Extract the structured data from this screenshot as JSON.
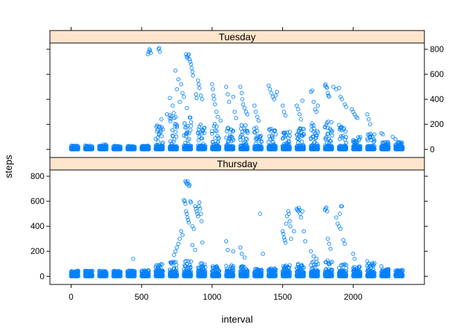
{
  "chart_data": {
    "type": "scatter",
    "xlabel": "interval",
    "ylabel": "steps",
    "xlim": [
      -150,
      2505
    ],
    "ylim": [
      -65,
      850
    ],
    "x_ticks": [
      0,
      500,
      1000,
      1500,
      2000
    ],
    "y_ticks": [
      0,
      200,
      400,
      600,
      800
    ],
    "grid": false,
    "marker_color": "#0080ff",
    "strip_color": "#ffe5cc",
    "panels": [
      {
        "name": "Tuesday",
        "base_max": 30,
        "clusters": [
          {
            "x": 0,
            "max": 20
          },
          {
            "x": 100,
            "max": 10
          },
          {
            "x": 200,
            "max": 40
          },
          {
            "x": 300,
            "max": 10
          },
          {
            "x": 400,
            "max": 10
          },
          {
            "x": 500,
            "max": 20
          },
          {
            "x": 600,
            "max": 200
          },
          {
            "x": 700,
            "max": 320
          },
          {
            "x": 800,
            "max": 260
          },
          {
            "x": 900,
            "max": 200
          },
          {
            "x": 1000,
            "max": 220
          },
          {
            "x": 1100,
            "max": 180
          },
          {
            "x": 1200,
            "max": 200
          },
          {
            "x": 1300,
            "max": 180
          },
          {
            "x": 1400,
            "max": 180
          },
          {
            "x": 1500,
            "max": 150
          },
          {
            "x": 1600,
            "max": 170
          },
          {
            "x": 1700,
            "max": 210
          },
          {
            "x": 1800,
            "max": 230
          },
          {
            "x": 1900,
            "max": 200
          },
          {
            "x": 2000,
            "max": 110
          },
          {
            "x": 2100,
            "max": 140
          },
          {
            "x": 2200,
            "max": 60
          },
          {
            "x": 2300,
            "max": 60
          }
        ],
        "points": [
          [
            545,
            760
          ],
          [
            550,
            780
          ],
          [
            555,
            800
          ],
          [
            560,
            790
          ],
          [
            565,
            770
          ],
          [
            620,
            800
          ],
          [
            625,
            810
          ],
          [
            630,
            780
          ],
          [
            815,
            760
          ],
          [
            820,
            740
          ],
          [
            825,
            730
          ],
          [
            830,
            750
          ],
          [
            835,
            760
          ],
          [
            840,
            720
          ],
          [
            845,
            700
          ],
          [
            850,
            680
          ],
          [
            855,
            650
          ],
          [
            860,
            620
          ],
          [
            865,
            590
          ],
          [
            900,
            550
          ],
          [
            905,
            520
          ],
          [
            910,
            490
          ],
          [
            885,
            440
          ],
          [
            890,
            410
          ],
          [
            920,
            430
          ],
          [
            930,
            400
          ],
          [
            740,
            630
          ],
          [
            760,
            560
          ],
          [
            790,
            450
          ],
          [
            800,
            420
          ],
          [
            770,
            380
          ],
          [
            820,
            330
          ],
          [
            720,
            350
          ],
          [
            680,
            280
          ],
          [
            640,
            240
          ],
          [
            700,
            410
          ],
          [
            750,
            480
          ],
          [
            780,
            520
          ],
          [
            1000,
            520
          ],
          [
            1005,
            480
          ],
          [
            1010,
            430
          ],
          [
            1015,
            400
          ],
          [
            1020,
            360
          ],
          [
            1030,
            300
          ],
          [
            1040,
            260
          ],
          [
            1060,
            230
          ],
          [
            1100,
            500
          ],
          [
            1110,
            440
          ],
          [
            1120,
            380
          ],
          [
            1150,
            420
          ],
          [
            1160,
            300
          ],
          [
            1170,
            250
          ],
          [
            1200,
            500
          ],
          [
            1210,
            450
          ],
          [
            1215,
            400
          ],
          [
            1220,
            360
          ],
          [
            1230,
            330
          ],
          [
            1240,
            300
          ],
          [
            1250,
            280
          ],
          [
            1300,
            350
          ],
          [
            1310,
            300
          ],
          [
            1320,
            260
          ],
          [
            1330,
            230
          ],
          [
            1400,
            510
          ],
          [
            1410,
            480
          ],
          [
            1420,
            450
          ],
          [
            1430,
            420
          ],
          [
            1440,
            400
          ],
          [
            1450,
            430
          ],
          [
            1460,
            460
          ],
          [
            1500,
            350
          ],
          [
            1510,
            300
          ],
          [
            1520,
            270
          ],
          [
            1600,
            350
          ],
          [
            1610,
            320
          ],
          [
            1620,
            280
          ],
          [
            1630,
            240
          ],
          [
            1640,
            390
          ],
          [
            1700,
            460
          ],
          [
            1710,
            470
          ],
          [
            1720,
            380
          ],
          [
            1730,
            320
          ],
          [
            1740,
            300
          ],
          [
            1750,
            350
          ],
          [
            1800,
            510
          ],
          [
            1805,
            520
          ],
          [
            1810,
            500
          ],
          [
            1815,
            490
          ],
          [
            1820,
            450
          ],
          [
            1825,
            430
          ],
          [
            1830,
            420
          ],
          [
            1860,
            500
          ],
          [
            1880,
            480
          ],
          [
            1900,
            490
          ],
          [
            1910,
            420
          ],
          [
            1920,
            400
          ],
          [
            1940,
            360
          ],
          [
            1950,
            340
          ],
          [
            1990,
            320
          ],
          [
            2000,
            300
          ],
          [
            2010,
            280
          ],
          [
            2020,
            260
          ],
          [
            2030,
            250
          ],
          [
            2100,
            280
          ],
          [
            2110,
            240
          ],
          [
            2120,
            200
          ],
          [
            2200,
            130
          ],
          [
            2210,
            120
          ],
          [
            2280,
            100
          ],
          [
            2300,
            80
          ]
        ]
      },
      {
        "name": "Thursday",
        "base_max": 45,
        "clusters": [
          {
            "x": 0,
            "max": 45
          },
          {
            "x": 100,
            "max": 45
          },
          {
            "x": 200,
            "max": 45
          },
          {
            "x": 300,
            "max": 45
          },
          {
            "x": 400,
            "max": 50
          },
          {
            "x": 500,
            "max": 50
          },
          {
            "x": 600,
            "max": 100
          },
          {
            "x": 700,
            "max": 120
          },
          {
            "x": 800,
            "max": 130
          },
          {
            "x": 900,
            "max": 110
          },
          {
            "x": 1000,
            "max": 90
          },
          {
            "x": 1100,
            "max": 90
          },
          {
            "x": 1200,
            "max": 80
          },
          {
            "x": 1300,
            "max": 60
          },
          {
            "x": 1400,
            "max": 70
          },
          {
            "x": 1500,
            "max": 90
          },
          {
            "x": 1600,
            "max": 100
          },
          {
            "x": 1700,
            "max": 120
          },
          {
            "x": 1800,
            "max": 130
          },
          {
            "x": 1900,
            "max": 100
          },
          {
            "x": 2000,
            "max": 80
          },
          {
            "x": 2100,
            "max": 110
          },
          {
            "x": 2200,
            "max": 60
          },
          {
            "x": 2300,
            "max": 60
          }
        ],
        "points": [
          [
            440,
            140
          ],
          [
            810,
            760
          ],
          [
            815,
            750
          ],
          [
            820,
            740
          ],
          [
            825,
            760
          ],
          [
            830,
            740
          ],
          [
            835,
            720
          ],
          [
            840,
            730
          ],
          [
            800,
            610
          ],
          [
            805,
            600
          ],
          [
            810,
            580
          ],
          [
            815,
            520
          ],
          [
            820,
            500
          ],
          [
            825,
            470
          ],
          [
            830,
            450
          ],
          [
            835,
            430
          ],
          [
            845,
            600
          ],
          [
            850,
            590
          ],
          [
            860,
            400
          ],
          [
            870,
            380
          ],
          [
            880,
            560
          ],
          [
            885,
            540
          ],
          [
            890,
            520
          ],
          [
            895,
            500
          ],
          [
            900,
            480
          ],
          [
            905,
            560
          ],
          [
            910,
            590
          ],
          [
            915,
            540
          ],
          [
            920,
            500
          ],
          [
            925,
            440
          ],
          [
            780,
            360
          ],
          [
            790,
            330
          ],
          [
            770,
            300
          ],
          [
            760,
            260
          ],
          [
            750,
            230
          ],
          [
            740,
            200
          ],
          [
            730,
            170
          ],
          [
            860,
            250
          ],
          [
            880,
            210
          ],
          [
            930,
            270
          ],
          [
            1100,
            280
          ],
          [
            1110,
            210
          ],
          [
            1150,
            200
          ],
          [
            1200,
            230
          ],
          [
            1210,
            180
          ],
          [
            1230,
            150
          ],
          [
            1340,
            500
          ],
          [
            1360,
            180
          ],
          [
            1500,
            360
          ],
          [
            1505,
            340
          ],
          [
            1510,
            310
          ],
          [
            1515,
            290
          ],
          [
            1520,
            270
          ],
          [
            1525,
            420
          ],
          [
            1530,
            480
          ],
          [
            1540,
            520
          ],
          [
            1545,
            500
          ],
          [
            1550,
            440
          ],
          [
            1555,
            400
          ],
          [
            1560,
            300
          ],
          [
            1580,
            360
          ],
          [
            1600,
            540
          ],
          [
            1605,
            530
          ],
          [
            1610,
            520
          ],
          [
            1615,
            545
          ],
          [
            1620,
            530
          ],
          [
            1625,
            500
          ],
          [
            1630,
            470
          ],
          [
            1640,
            520
          ],
          [
            1650,
            360
          ],
          [
            1660,
            280
          ],
          [
            1700,
            200
          ],
          [
            1720,
            160
          ],
          [
            1740,
            140
          ],
          [
            1800,
            530
          ],
          [
            1805,
            540
          ],
          [
            1810,
            550
          ],
          [
            1815,
            520
          ],
          [
            1820,
            300
          ],
          [
            1830,
            260
          ],
          [
            1840,
            220
          ],
          [
            1880,
            470
          ],
          [
            1890,
            420
          ],
          [
            1900,
            400
          ],
          [
            1905,
            500
          ],
          [
            1910,
            380
          ],
          [
            1915,
            560
          ],
          [
            1920,
            560
          ],
          [
            1930,
            290
          ],
          [
            1940,
            260
          ],
          [
            2000,
            180
          ],
          [
            2010,
            140
          ],
          [
            2100,
            120
          ],
          [
            2110,
            100
          ],
          [
            2200,
            80
          ]
        ]
      }
    ]
  }
}
